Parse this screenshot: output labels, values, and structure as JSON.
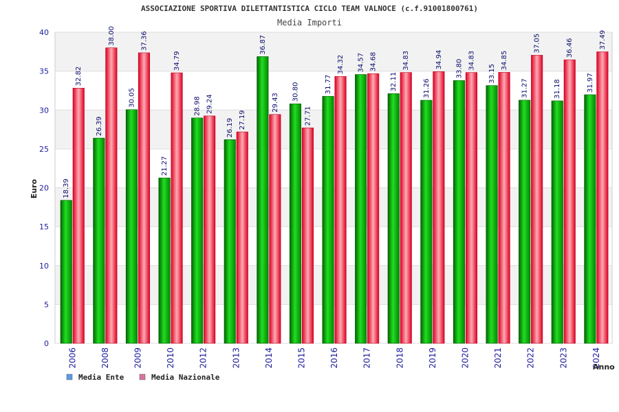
{
  "chart_data": {
    "type": "bar",
    "title": "ASSOCIAZIONE SPORTIVA DILETTANTISTICA CICLO TEAM VALNOCE (c.f.91001800761)",
    "subtitle": "Media Importi",
    "xlabel": "Anno",
    "ylabel": "Euro",
    "ylim": [
      0,
      40
    ],
    "yticks": [
      "0",
      "5",
      "10",
      "15",
      "20",
      "25",
      "30",
      "35",
      "40"
    ],
    "grid": true,
    "legend_position": "bottom-left",
    "categories": [
      "2006",
      "2008",
      "2009",
      "2010",
      "2012",
      "2013",
      "2014",
      "2015",
      "2016",
      "2017",
      "2018",
      "2019",
      "2020",
      "2021",
      "2022",
      "2023",
      "2024"
    ],
    "series": [
      {
        "name": "Media Ente",
        "color": "#00aa00",
        "legend_color": "#5b9be6",
        "values": [
          18.39,
          26.39,
          30.05,
          21.27,
          28.98,
          26.19,
          36.87,
          30.8,
          31.77,
          34.57,
          32.11,
          31.26,
          33.8,
          33.15,
          31.27,
          31.18,
          31.97
        ],
        "labels": [
          "18.39",
          "26.39",
          "30.05",
          "21.27",
          "28.98",
          "26.19",
          "36.87",
          "30.80",
          "31.77",
          "34.57",
          "32.11",
          "31.26",
          "33.80",
          "33.15",
          "31.27",
          "31.18",
          "31.97"
        ]
      },
      {
        "name": "Media Nazionale",
        "color": "#ee1133",
        "legend_color": "#d9739f",
        "values": [
          32.82,
          38.0,
          37.36,
          34.79,
          29.24,
          27.19,
          29.43,
          27.71,
          34.32,
          34.68,
          34.83,
          34.94,
          34.83,
          34.85,
          37.05,
          36.46,
          37.49
        ],
        "labels": [
          "32.82",
          "38.00",
          "37.36",
          "34.79",
          "29.24",
          "27.19",
          "29.43",
          "27.71",
          "34.32",
          "34.68",
          "34.83",
          "34.94",
          "34.83",
          "34.85",
          "37.05",
          "36.46",
          "37.49"
        ]
      }
    ]
  }
}
